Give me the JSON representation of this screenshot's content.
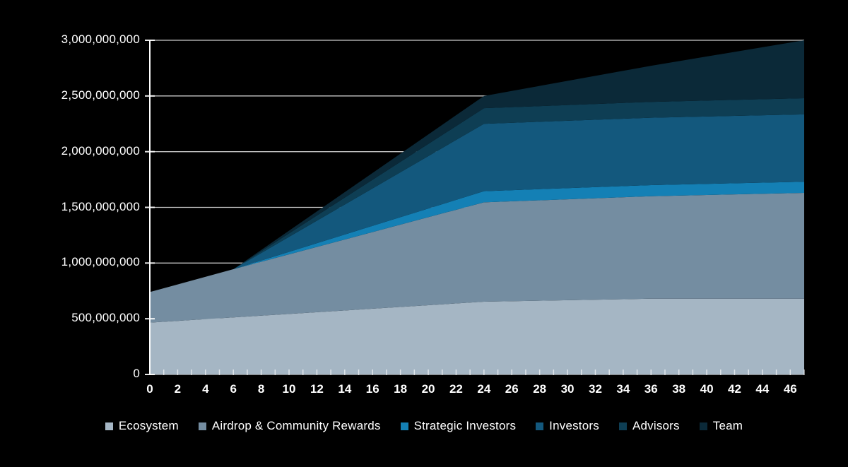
{
  "page": {
    "background_color": "#000000",
    "text_color": "#ffffff",
    "axis_color": "#ffffff",
    "grid_color": "#c9c9c9"
  },
  "chart_data": {
    "type": "area",
    "stacked": true,
    "title": "",
    "xlabel": "",
    "ylabel": "",
    "xlim": [
      0,
      47
    ],
    "ylim": [
      0,
      3000000000
    ],
    "grid": "horizontal",
    "legend_position": "bottom",
    "x": [
      0,
      6,
      24,
      36,
      47
    ],
    "series": [
      {
        "name": "Ecosystem",
        "color": "#a5b6c4",
        "values": [
          465000000,
          512000000,
          653000000,
          680000000,
          680000000
        ]
      },
      {
        "name": "Airdrop & Community Rewards",
        "color": "#748da1",
        "values": [
          275000000,
          433000000,
          892000000,
          920000000,
          950000000
        ]
      },
      {
        "name": "Strategic Investors",
        "color": "#1480b5",
        "values": [
          0,
          0,
          100000000,
          100000000,
          100000000
        ]
      },
      {
        "name": "Investors",
        "color": "#13587d",
        "values": [
          0,
          0,
          605000000,
          605000000,
          605000000
        ]
      },
      {
        "name": "Advisors",
        "color": "#0e3e54",
        "values": [
          0,
          0,
          140000000,
          142000000,
          145000000
        ]
      },
      {
        "name": "Team",
        "color": "#0b2938",
        "values": [
          0,
          0,
          110000000,
          324000000,
          520000000
        ]
      }
    ],
    "y_ticks": [
      {
        "value": 0,
        "label": "0"
      },
      {
        "value": 500000000,
        "label": "500,000,000"
      },
      {
        "value": 1000000000,
        "label": "1,000,000,000"
      },
      {
        "value": 1500000000,
        "label": "1,500,000,000"
      },
      {
        "value": 2000000000,
        "label": "2,000,000,000"
      },
      {
        "value": 2500000000,
        "label": "2,500,000,000"
      },
      {
        "value": 3000000000,
        "label": "3,000,000,000"
      }
    ],
    "x_tick_labels": [
      "0",
      "2",
      "4",
      "6",
      "8",
      "10",
      "12",
      "14",
      "16",
      "18",
      "20",
      "22",
      "24",
      "26",
      "28",
      "30",
      "32",
      "34",
      "36",
      "40",
      "38",
      "42",
      "44",
      "46"
    ],
    "x_major_tick_step": 2,
    "x_minor_tick_step": 1
  }
}
